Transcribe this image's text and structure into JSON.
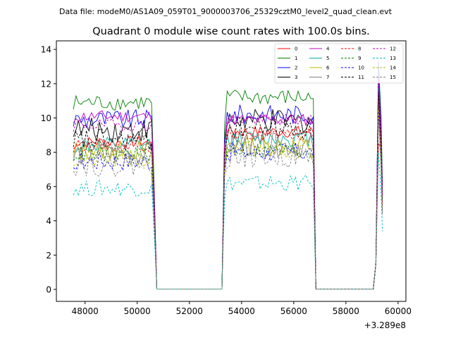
{
  "chart_data": {
    "type": "line",
    "suptitle": "Data file: modeM0/AS1A09_059T01_9000003706_25329cztM0_level2_quad_clean.evt",
    "title": "Quadrant 0 module wise count rates with 100.0s bins.",
    "xlabel": "",
    "ylabel": "",
    "x_offset_label": "+3.289e8",
    "xlim": [
      46900,
      60300
    ],
    "ylim": [
      -0.7,
      14.5
    ],
    "x_ticks": [
      48000,
      50000,
      52000,
      54000,
      56000,
      58000,
      60000
    ],
    "x_tick_labels": [
      "48000",
      "50000",
      "52000",
      "54000",
      "56000",
      "58000",
      "60000"
    ],
    "y_ticks": [
      0,
      2,
      4,
      6,
      8,
      10,
      12,
      14
    ],
    "y_tick_labels": [
      "0",
      "2",
      "4",
      "6",
      "8",
      "10",
      "12",
      "14"
    ],
    "grid": false,
    "legend_position": "top-right",
    "segments": [
      {
        "start": 47550,
        "end": 50550,
        "bins": 31
      },
      {
        "start": 53350,
        "end": 56750,
        "bins": 35
      },
      {
        "start": 59150,
        "end": 59350,
        "bins": 3
      }
    ],
    "zero_ranges": [
      [
        50750,
        53250
      ],
      [
        56850,
        59050
      ]
    ],
    "series": [
      {
        "name": "0",
        "color": "#ff0000",
        "dash": "solid",
        "levels": [
          8.6,
          9.2,
          8.5
        ]
      },
      {
        "name": "1",
        "color": "#008000",
        "dash": "solid",
        "levels": [
          10.9,
          11.2,
          13.2
        ]
      },
      {
        "name": "2",
        "color": "#0000ff",
        "dash": "solid",
        "levels": [
          9.9,
          10.2,
          13.3
        ]
      },
      {
        "name": "3",
        "color": "#000000",
        "dash": "solid",
        "levels": [
          9.3,
          9.8,
          12.0
        ]
      },
      {
        "name": "4",
        "color": "#c000c0",
        "dash": "solid",
        "levels": [
          10.1,
          9.9,
          12.5
        ]
      },
      {
        "name": "5",
        "color": "#00b0a0",
        "dash": "solid",
        "levels": [
          8.4,
          8.8,
          12.0
        ]
      },
      {
        "name": "6",
        "color": "#b8b800",
        "dash": "solid",
        "levels": [
          8.1,
          8.4,
          11.0
        ]
      },
      {
        "name": "7",
        "color": "#808080",
        "dash": "solid",
        "levels": [
          7.9,
          8.4,
          10.5
        ]
      },
      {
        "name": "8",
        "color": "#ff0000",
        "dash": "dashed",
        "levels": [
          8.4,
          9.0,
          11.5
        ]
      },
      {
        "name": "9",
        "color": "#008000",
        "dash": "dashed",
        "levels": [
          7.9,
          8.1,
          11.0
        ]
      },
      {
        "name": "10",
        "color": "#0000ff",
        "dash": "dashed",
        "levels": [
          7.5,
          8.0,
          10.5
        ]
      },
      {
        "name": "11",
        "color": "#000000",
        "dash": "dashed",
        "levels": [
          8.7,
          9.4,
          11.5
        ]
      },
      {
        "name": "12",
        "color": "#c000c0",
        "dash": "dashed",
        "levels": [
          9.6,
          9.9,
          12.5
        ]
      },
      {
        "name": "13",
        "color": "#00c0c0",
        "dash": "dashed",
        "levels": [
          5.9,
          6.2,
          8.0
        ]
      },
      {
        "name": "14",
        "color": "#b8b800",
        "dash": "dashed",
        "levels": [
          7.6,
          8.2,
          10.5
        ]
      },
      {
        "name": "15",
        "color": "#808080",
        "dash": "dashed",
        "levels": [
          7.3,
          7.8,
          10.0
        ]
      }
    ]
  }
}
